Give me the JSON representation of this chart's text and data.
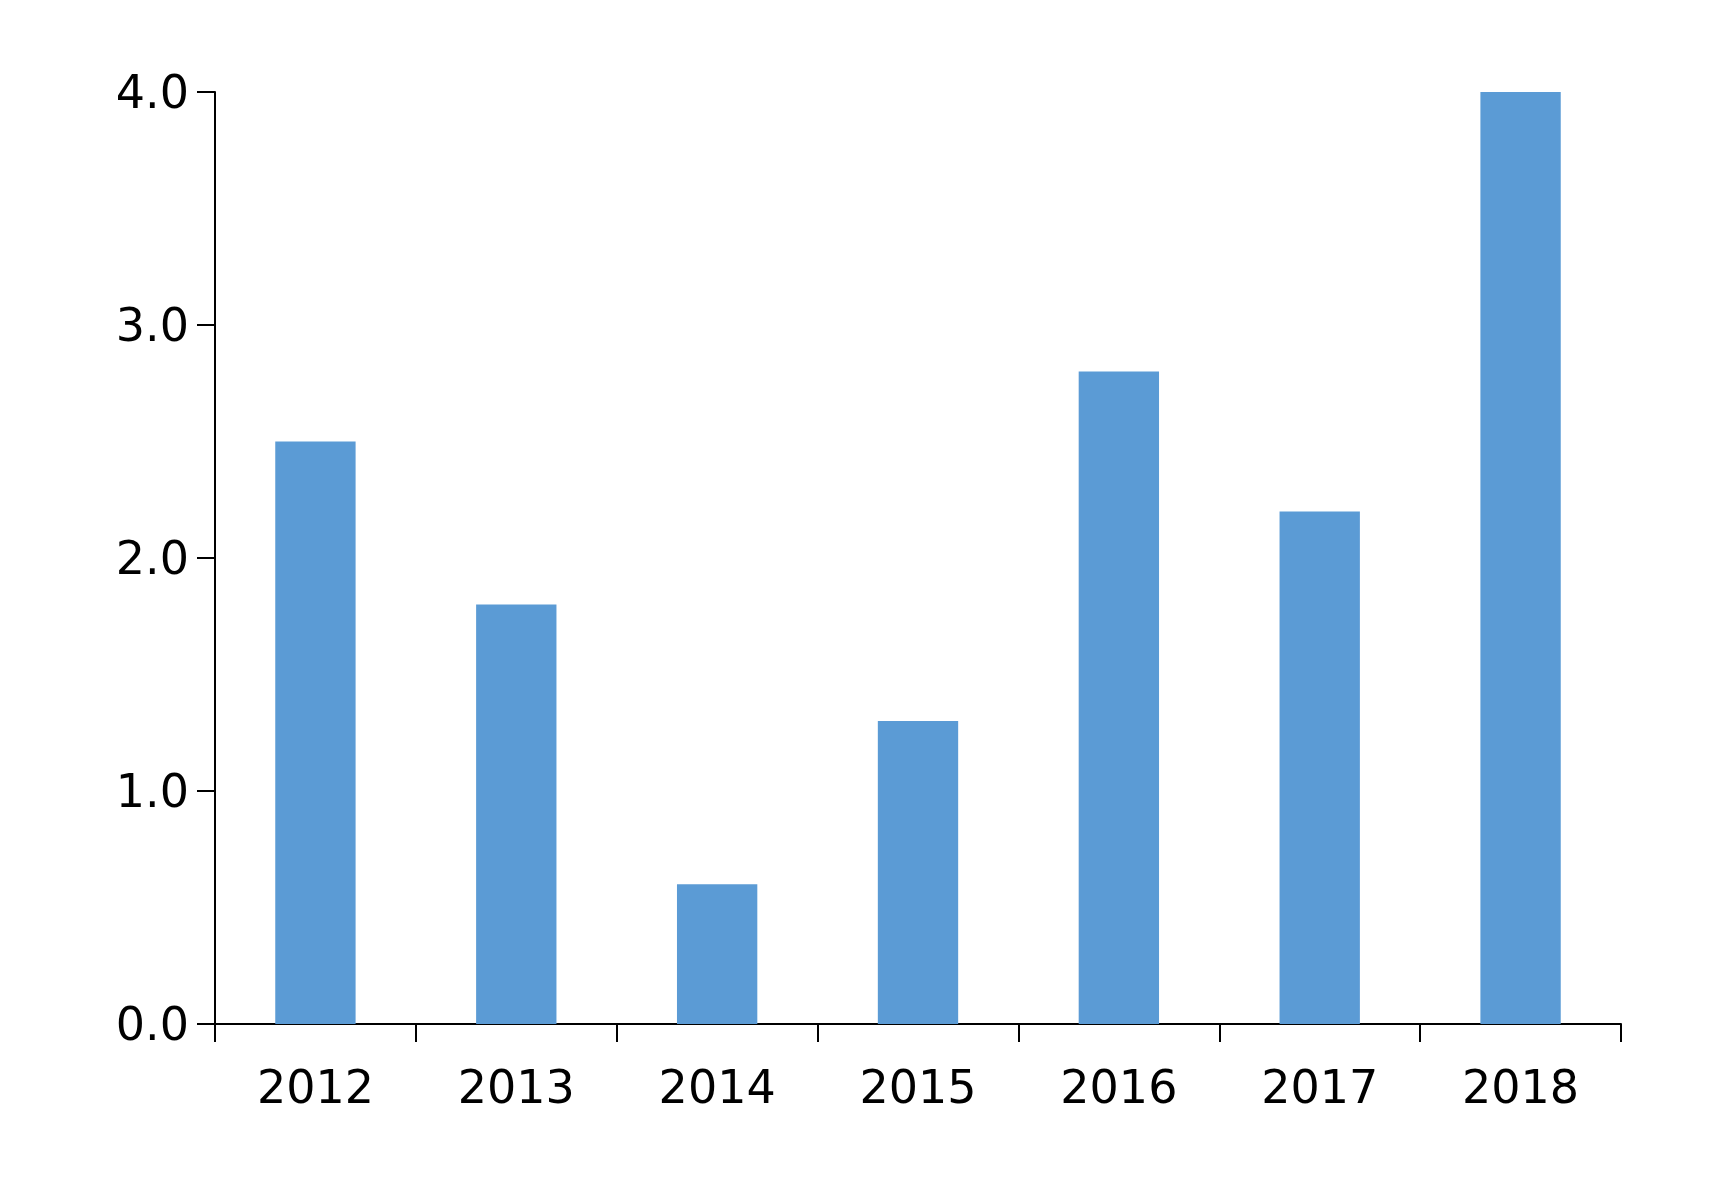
{
  "chart_data": {
    "type": "bar",
    "categories": [
      "2012",
      "2013",
      "2014",
      "2015",
      "2016",
      "2017",
      "2018"
    ],
    "values": [
      2.5,
      1.8,
      0.6,
      1.3,
      2.8,
      2.2,
      4.0
    ],
    "color": "#5b9bd5",
    "ylim": [
      0,
      4
    ],
    "yticks": [
      {
        "value": 0,
        "label": "0.0"
      },
      {
        "value": 1,
        "label": "1.0"
      },
      {
        "value": 2,
        "label": "2.0"
      },
      {
        "value": 3,
        "label": "3.0"
      },
      {
        "value": 4,
        "label": "4.0"
      }
    ],
    "grid": false
  }
}
